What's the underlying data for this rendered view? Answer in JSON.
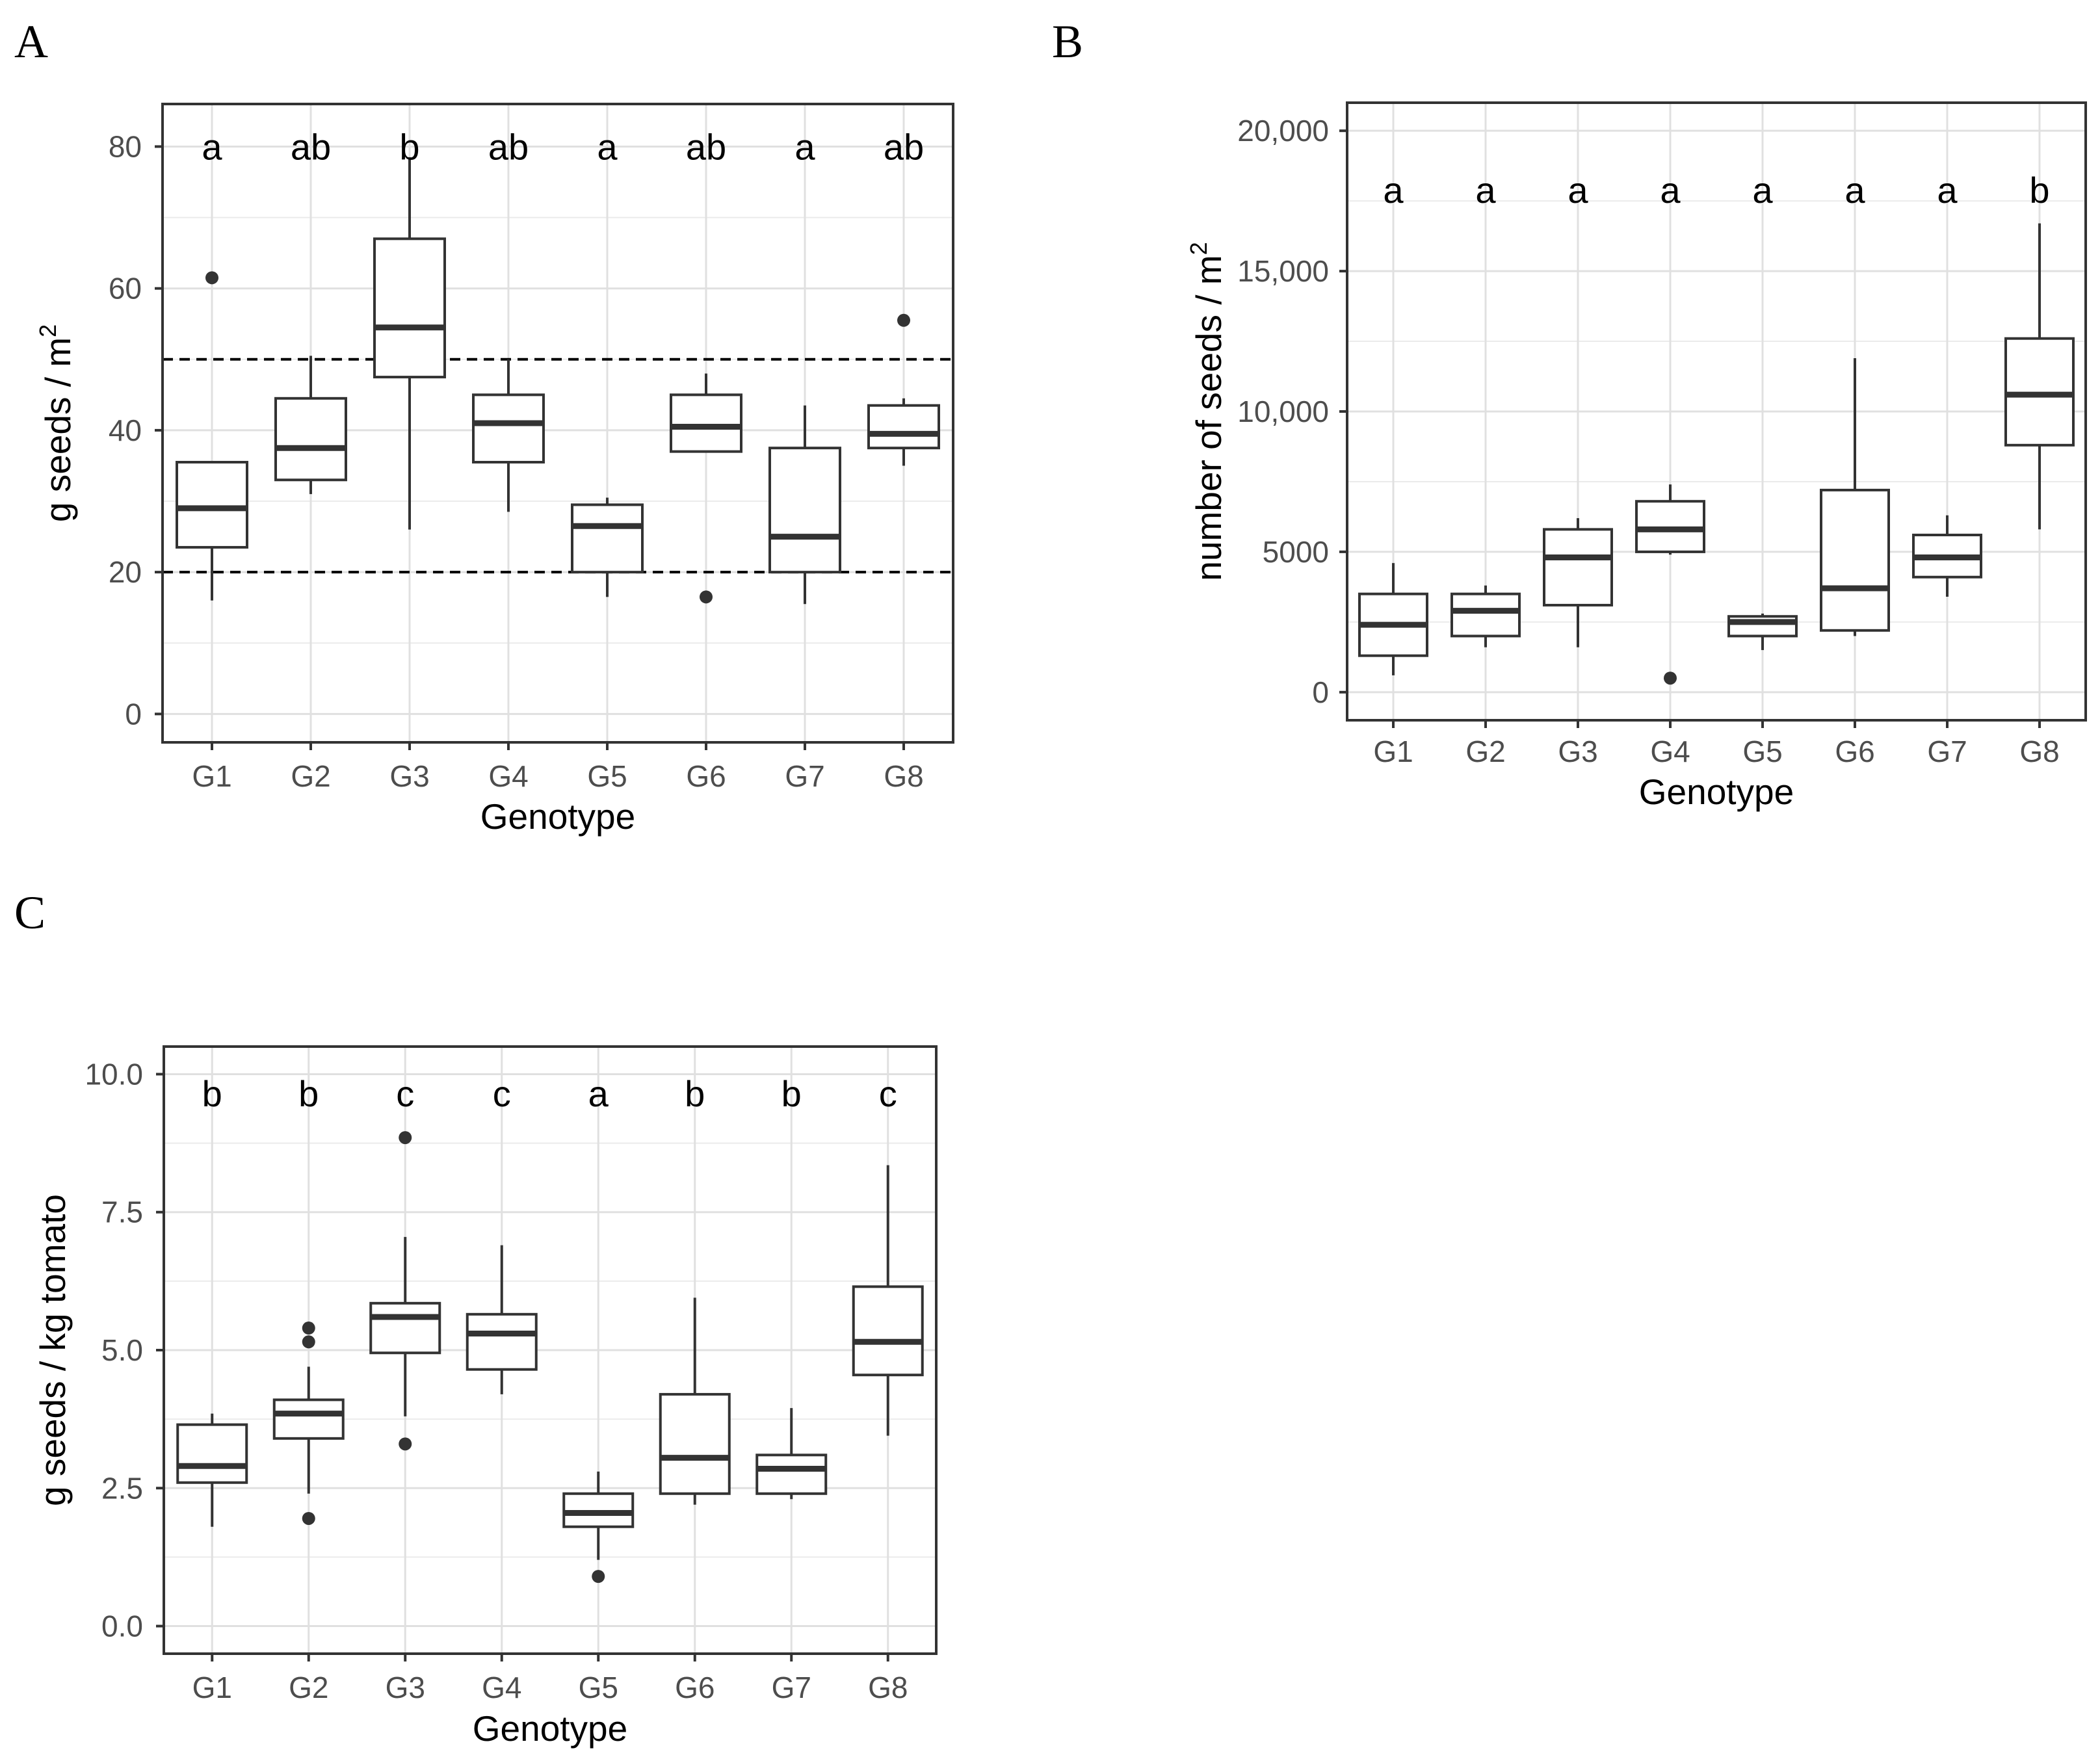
{
  "panels": [
    "A",
    "B",
    "C"
  ],
  "chart_data": [
    {
      "panel": "A",
      "type": "boxplot",
      "xlabel": "Genotype",
      "ylabel": "g seeds / m",
      "ylabel_superscript": "2",
      "categories": [
        "G1",
        "G2",
        "G3",
        "G4",
        "G5",
        "G6",
        "G7",
        "G8"
      ],
      "ylim": [
        -4,
        86
      ],
      "yticks": [
        0,
        20,
        40,
        60,
        80
      ],
      "ytick_labels": [
        "0",
        "20",
        "40",
        "60",
        "80"
      ],
      "grid": true,
      "reference_lines": [
        20,
        50
      ],
      "significance_letters": [
        "a",
        "ab",
        "b",
        "ab",
        "a",
        "ab",
        "a",
        "ab"
      ],
      "letter_y": 80,
      "boxes": [
        {
          "min": 16,
          "q1": 23.5,
          "median": 29,
          "q3": 35.5,
          "max": 35.5,
          "outliers": [
            61.5
          ]
        },
        {
          "min": 31,
          "q1": 33,
          "median": 37.5,
          "q3": 44.5,
          "max": 50.5,
          "outliers": []
        },
        {
          "min": 26,
          "q1": 47.5,
          "median": 54.5,
          "q3": 67,
          "max": 78.5,
          "outliers": []
        },
        {
          "min": 28.5,
          "q1": 35.5,
          "median": 41,
          "q3": 45,
          "max": 50,
          "outliers": []
        },
        {
          "min": 16.5,
          "q1": 20,
          "median": 26.5,
          "q3": 29.5,
          "max": 30.5,
          "outliers": []
        },
        {
          "min": 37,
          "q1": 37,
          "median": 40.5,
          "q3": 45,
          "max": 48,
          "outliers": [
            16.5
          ]
        },
        {
          "min": 15.5,
          "q1": 20,
          "median": 25,
          "q3": 37.5,
          "max": 43.5,
          "outliers": []
        },
        {
          "min": 35,
          "q1": 37.5,
          "median": 39.5,
          "q3": 43.5,
          "max": 44.5,
          "outliers": [
            55.5
          ]
        }
      ]
    },
    {
      "panel": "B",
      "type": "boxplot",
      "xlabel": "Genotype",
      "ylabel": "number of seeds / m",
      "ylabel_superscript": "2",
      "categories": [
        "G1",
        "G2",
        "G3",
        "G4",
        "G5",
        "G6",
        "G7",
        "G8"
      ],
      "ylim": [
        -1000,
        21000
      ],
      "yticks": [
        0,
        5000,
        10000,
        15000,
        20000
      ],
      "ytick_labels": [
        "0",
        "5000",
        "10,000",
        "15,000",
        "20,000"
      ],
      "grid": true,
      "reference_lines": [],
      "significance_letters": [
        "a",
        "a",
        "a",
        "a",
        "a",
        "a",
        "a",
        "b"
      ],
      "letter_y": 17900,
      "boxes": [
        {
          "min": 600,
          "q1": 1300,
          "median": 2400,
          "q3": 3500,
          "max": 4600,
          "outliers": []
        },
        {
          "min": 1600,
          "q1": 2000,
          "median": 2900,
          "q3": 3500,
          "max": 3800,
          "outliers": []
        },
        {
          "min": 1600,
          "q1": 3100,
          "median": 4800,
          "q3": 5800,
          "max": 6200,
          "outliers": []
        },
        {
          "min": 4900,
          "q1": 5000,
          "median": 5800,
          "q3": 6800,
          "max": 7400,
          "outliers": [
            500
          ]
        },
        {
          "min": 1500,
          "q1": 2000,
          "median": 2500,
          "q3": 2700,
          "max": 2800,
          "outliers": []
        },
        {
          "min": 2000,
          "q1": 2200,
          "median": 3700,
          "q3": 7200,
          "max": 11900,
          "outliers": []
        },
        {
          "min": 3400,
          "q1": 4100,
          "median": 4800,
          "q3": 5600,
          "max": 6300,
          "outliers": []
        },
        {
          "min": 5800,
          "q1": 8800,
          "median": 10600,
          "q3": 12600,
          "max": 16700,
          "outliers": []
        }
      ]
    },
    {
      "panel": "C",
      "type": "boxplot",
      "xlabel": "Genotype",
      "ylabel": "g seeds / kg tomato",
      "categories": [
        "G1",
        "G2",
        "G3",
        "G4",
        "G5",
        "G6",
        "G7",
        "G8"
      ],
      "ylim": [
        -0.5,
        10.5
      ],
      "yticks": [
        0,
        2.5,
        5,
        7.5,
        10
      ],
      "ytick_labels": [
        "0.0",
        "2.5",
        "5.0",
        "7.5",
        "10.0"
      ],
      "grid": true,
      "reference_lines": [],
      "significance_letters": [
        "b",
        "b",
        "c",
        "c",
        "a",
        "b",
        "b",
        "c"
      ],
      "letter_y": 9.65,
      "boxes": [
        {
          "min": 1.8,
          "q1": 2.6,
          "median": 2.9,
          "q3": 3.65,
          "max": 3.85,
          "outliers": []
        },
        {
          "min": 2.4,
          "q1": 3.4,
          "median": 3.85,
          "q3": 4.1,
          "max": 4.7,
          "outliers": [
            5.15,
            5.4,
            1.95
          ]
        },
        {
          "min": 3.8,
          "q1": 4.95,
          "median": 5.6,
          "q3": 5.85,
          "max": 7.05,
          "outliers": [
            8.85,
            3.3
          ]
        },
        {
          "min": 4.2,
          "q1": 4.65,
          "median": 5.3,
          "q3": 5.65,
          "max": 6.9,
          "outliers": []
        },
        {
          "min": 1.2,
          "q1": 1.8,
          "median": 2.05,
          "q3": 2.4,
          "max": 2.8,
          "outliers": [
            0.9
          ]
        },
        {
          "min": 2.2,
          "q1": 2.4,
          "median": 3.05,
          "q3": 4.2,
          "max": 5.95,
          "outliers": []
        },
        {
          "min": 2.3,
          "q1": 2.4,
          "median": 2.85,
          "q3": 3.1,
          "max": 3.95,
          "outliers": []
        },
        {
          "min": 3.45,
          "q1": 4.55,
          "median": 5.15,
          "q3": 6.15,
          "max": 8.35,
          "outliers": []
        }
      ]
    }
  ]
}
